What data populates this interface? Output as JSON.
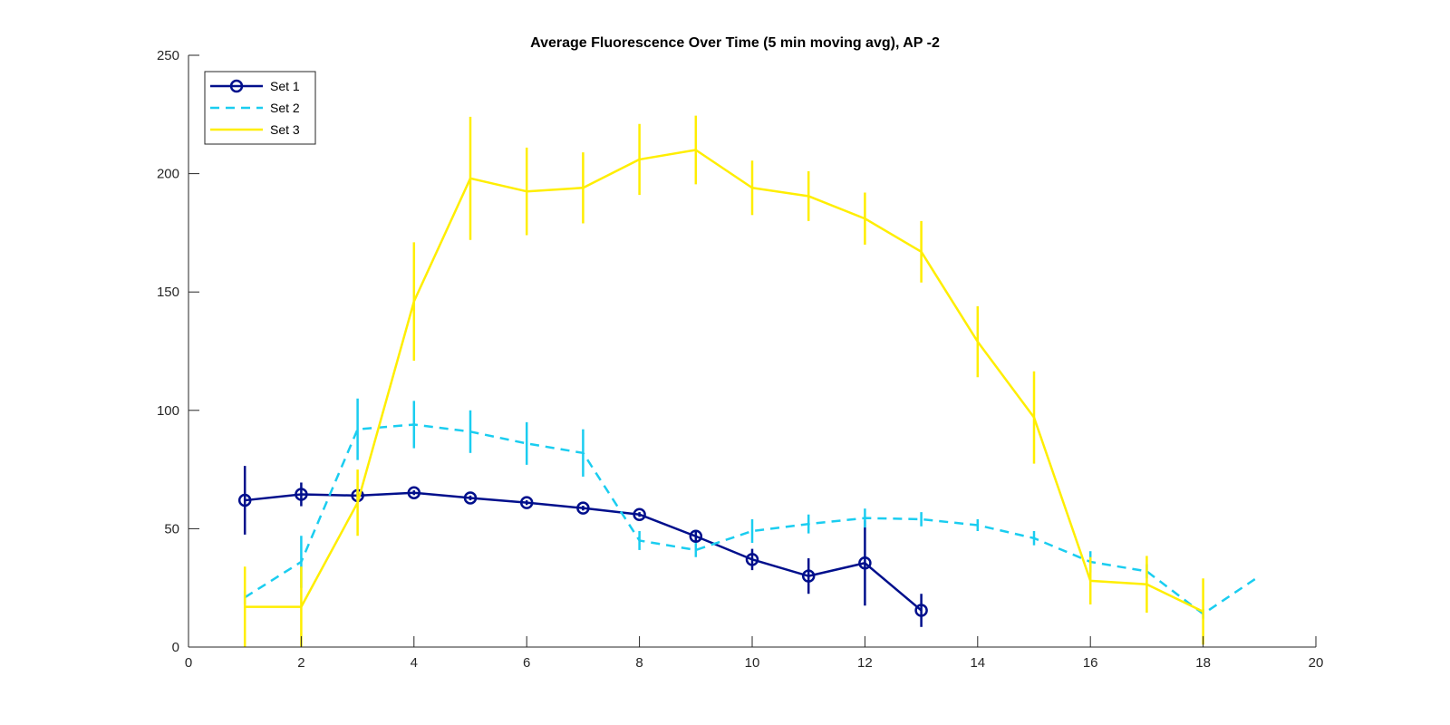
{
  "chart_data": {
    "type": "line",
    "title": "Average Fluorescence Over Time (5 min moving avg), AP -2",
    "xlabel": "",
    "ylabel": "",
    "xlim": [
      0,
      20
    ],
    "ylim": [
      0,
      250
    ],
    "xticks": [
      0,
      2,
      4,
      6,
      8,
      10,
      12,
      14,
      16,
      18,
      20
    ],
    "yticks": [
      0,
      50,
      100,
      150,
      200,
      250
    ],
    "grid": false,
    "legend_position": "top-left",
    "series": [
      {
        "name": "Set 1",
        "color": "#000f8c",
        "line_style": "solid",
        "marker": "circle",
        "x": [
          1,
          2,
          3,
          4,
          5,
          6,
          7,
          8,
          9,
          10,
          11,
          12,
          13
        ],
        "y": [
          62,
          64.5,
          64,
          65.2,
          63,
          61,
          58.7,
          56,
          46.8,
          37,
          30,
          35.5,
          15.5
        ],
        "error": [
          14.5,
          5,
          1.5,
          1,
          1,
          1,
          1,
          1,
          2.5,
          4.5,
          7.5,
          18,
          7
        ]
      },
      {
        "name": "Set 2",
        "color": "#1acdf0",
        "line_style": "dashed",
        "marker": "none",
        "x": [
          1,
          2,
          3,
          4,
          5,
          6,
          7,
          8,
          9,
          10,
          11,
          12,
          13,
          14,
          15,
          16,
          17,
          18,
          19
        ],
        "y": [
          21,
          36,
          92,
          94,
          91,
          86,
          82,
          45,
          41,
          49,
          52,
          54.5,
          54,
          51.5,
          46,
          36,
          32,
          14,
          30
        ],
        "error": [
          3,
          11,
          13,
          10,
          9,
          9,
          10,
          4,
          3,
          5,
          4,
          4,
          3,
          2.5,
          3,
          4.5,
          3,
          2,
          0
        ]
      },
      {
        "name": "Set 3",
        "color": "#ffee00",
        "line_style": "solid",
        "marker": "none",
        "x": [
          1,
          2,
          3,
          4,
          5,
          6,
          7,
          8,
          9,
          10,
          11,
          12,
          13,
          14,
          15,
          16,
          17,
          18
        ],
        "y": [
          17,
          17,
          61,
          146,
          198,
          192.5,
          194,
          206,
          210,
          194,
          190.5,
          181,
          167,
          129,
          97,
          28,
          26.5,
          15
        ],
        "error": [
          17,
          17,
          14,
          25,
          26,
          18.5,
          15,
          15,
          14.5,
          11.5,
          10.5,
          11,
          13,
          15,
          19.5,
          10,
          12,
          14
        ]
      }
    ]
  }
}
